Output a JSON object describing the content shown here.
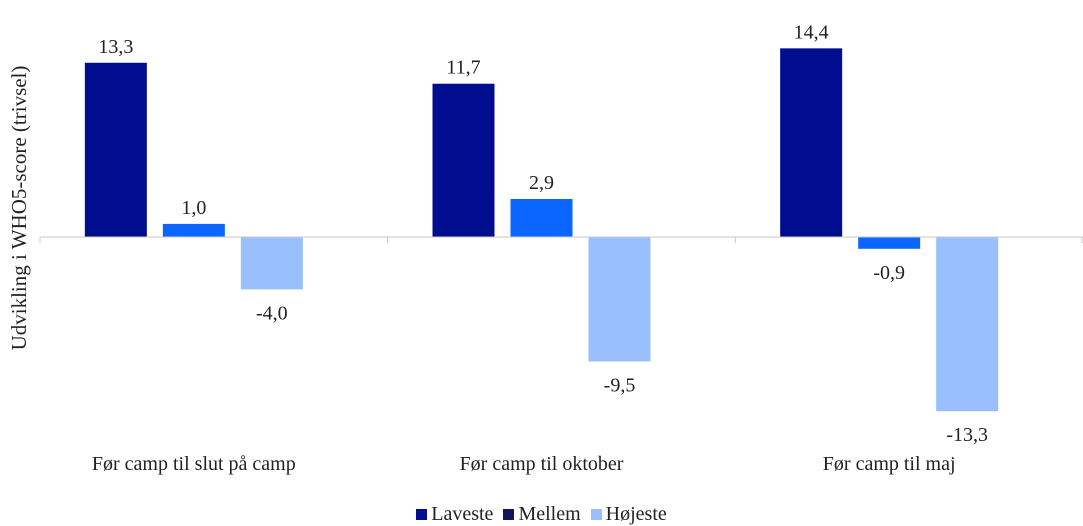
{
  "chart_data": {
    "type": "bar",
    "title": "",
    "xlabel": "",
    "ylabel": "Udvikling i WHO5-score (trivsel)",
    "categories": [
      "Før camp til slut på camp",
      "Før camp til oktober",
      "Før camp til maj"
    ],
    "series": [
      {
        "name": "Laveste",
        "color": "#000d8f",
        "values": [
          13.3,
          11.7,
          14.4
        ],
        "labels": [
          "13,3",
          "11,7",
          "14,4"
        ]
      },
      {
        "name": "Mellem",
        "color": "#0a66ff",
        "values": [
          1.0,
          2.9,
          -0.9
        ],
        "labels": [
          "1,0",
          "2,9",
          "-0,9"
        ]
      },
      {
        "name": "Højeste",
        "color": "#99bfff",
        "values": [
          -4.0,
          -9.5,
          -13.3
        ],
        "labels": [
          "-4,0",
          "-9,5",
          "-13,3"
        ]
      }
    ],
    "legend": {
      "position": "bottom",
      "items": [
        {
          "name": "Laveste",
          "color": "#000d8f"
        },
        {
          "name": "Mellem",
          "color": "#14145a"
        },
        {
          "name": "Højeste",
          "color": "#99bfff"
        }
      ]
    },
    "grid": false
  }
}
